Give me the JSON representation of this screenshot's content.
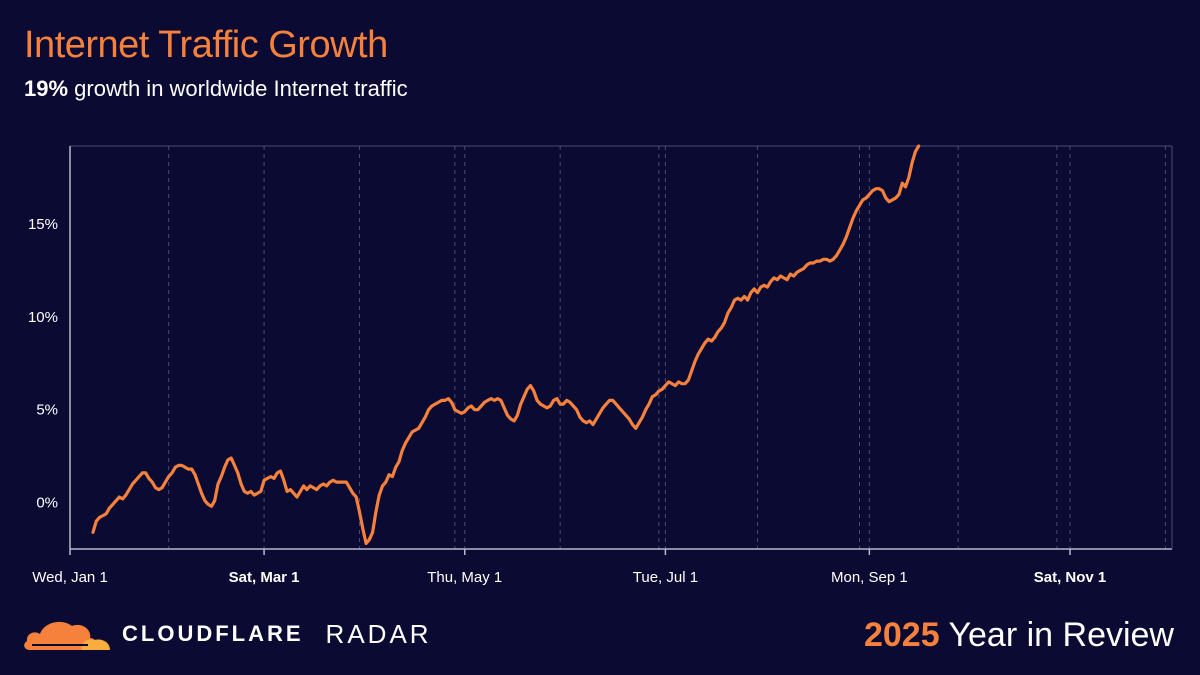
{
  "header": {
    "title": "Internet Traffic Growth",
    "subtitle_bold": "19%",
    "subtitle_rest": " growth in worldwide Internet traffic"
  },
  "footer": {
    "brand_name": "CLOUDFLARE",
    "brand_product": "RADAR",
    "year": "2025",
    "year_rest": " Year in Review"
  },
  "colors": {
    "background": "#0b0a33",
    "accent": "#f6813d",
    "axis": "#b8b8cc",
    "grid": "#4a4a75"
  },
  "icons": {
    "logo": "cloudflare-cloud-logo"
  },
  "chart_data": {
    "type": "line",
    "title": "Internet Traffic Growth",
    "xlabel": "",
    "ylabel": "",
    "ylim": [
      -2.5,
      19.2
    ],
    "xlim": [
      "2025-01-01",
      "2025-12-02"
    ],
    "grid": "vertical dashed weekly-ish lines",
    "y_ticks": [
      {
        "value": 0,
        "label": "0%"
      },
      {
        "value": 5,
        "label": "5%"
      },
      {
        "value": 10,
        "label": "10%"
      },
      {
        "value": 15,
        "label": "15%"
      }
    ],
    "x_ticks": [
      {
        "date": "2025-01-01",
        "label": "Wed, Jan 1",
        "bold": false
      },
      {
        "date": "2025-03-01",
        "label": "Sat, Mar 1",
        "bold": true
      },
      {
        "date": "2025-05-01",
        "label": "Thu, May 1",
        "bold": false
      },
      {
        "date": "2025-07-01",
        "label": "Tue, Jul 1",
        "bold": false
      },
      {
        "date": "2025-09-01",
        "label": "Mon, Sep 1",
        "bold": false
      },
      {
        "date": "2025-11-01",
        "label": "Sat, Nov 1",
        "bold": true
      }
    ],
    "grid_dates": [
      "2025-01-31",
      "2025-03-30",
      "2025-04-28",
      "2025-05-30",
      "2025-06-29",
      "2025-07-29",
      "2025-08-29",
      "2025-09-28",
      "2025-10-28",
      "2025-11-30"
    ],
    "series": [
      {
        "color": "#f6813d",
        "points": [
          [
            "2025-01-08",
            -1.6
          ],
          [
            "2025-01-09",
            -1.0
          ],
          [
            "2025-01-10",
            -0.8
          ],
          [
            "2025-01-11",
            -0.7
          ],
          [
            "2025-01-12",
            -0.6
          ],
          [
            "2025-01-13",
            -0.3
          ],
          [
            "2025-01-14",
            -0.1
          ],
          [
            "2025-01-15",
            0.1
          ],
          [
            "2025-01-16",
            0.3
          ],
          [
            "2025-01-17",
            0.2
          ],
          [
            "2025-01-18",
            0.4
          ],
          [
            "2025-01-19",
            0.7
          ],
          [
            "2025-01-20",
            1.0
          ],
          [
            "2025-01-21",
            1.2
          ],
          [
            "2025-01-22",
            1.4
          ],
          [
            "2025-01-23",
            1.6
          ],
          [
            "2025-01-24",
            1.6
          ],
          [
            "2025-01-25",
            1.3
          ],
          [
            "2025-01-26",
            1.1
          ],
          [
            "2025-01-27",
            0.8
          ],
          [
            "2025-01-28",
            0.7
          ],
          [
            "2025-01-29",
            0.8
          ],
          [
            "2025-01-30",
            1.1
          ],
          [
            "2025-01-31",
            1.4
          ],
          [
            "2025-02-01",
            1.6
          ],
          [
            "2025-02-02",
            1.9
          ],
          [
            "2025-02-03",
            2.0
          ],
          [
            "2025-02-04",
            2.0
          ],
          [
            "2025-02-05",
            1.9
          ],
          [
            "2025-02-06",
            1.8
          ],
          [
            "2025-02-07",
            1.8
          ],
          [
            "2025-02-08",
            1.5
          ],
          [
            "2025-02-09",
            1.0
          ],
          [
            "2025-02-10",
            0.5
          ],
          [
            "2025-02-11",
            0.1
          ],
          [
            "2025-02-12",
            -0.1
          ],
          [
            "2025-02-13",
            -0.2
          ],
          [
            "2025-02-14",
            0.1
          ],
          [
            "2025-02-15",
            1.0
          ],
          [
            "2025-02-16",
            1.4
          ],
          [
            "2025-02-17",
            1.9
          ],
          [
            "2025-02-18",
            2.3
          ],
          [
            "2025-02-19",
            2.4
          ],
          [
            "2025-02-20",
            2.0
          ],
          [
            "2025-02-21",
            1.6
          ],
          [
            "2025-02-22",
            1.0
          ],
          [
            "2025-02-23",
            0.6
          ],
          [
            "2025-02-24",
            0.5
          ],
          [
            "2025-02-25",
            0.6
          ],
          [
            "2025-02-26",
            0.4
          ],
          [
            "2025-02-27",
            0.5
          ],
          [
            "2025-02-28",
            0.6
          ],
          [
            "2025-03-01",
            1.2
          ],
          [
            "2025-03-02",
            1.3
          ],
          [
            "2025-03-03",
            1.4
          ],
          [
            "2025-03-04",
            1.3
          ],
          [
            "2025-03-05",
            1.6
          ],
          [
            "2025-03-06",
            1.7
          ],
          [
            "2025-03-07",
            1.2
          ],
          [
            "2025-03-08",
            0.6
          ],
          [
            "2025-03-09",
            0.7
          ],
          [
            "2025-03-10",
            0.5
          ],
          [
            "2025-03-11",
            0.3
          ],
          [
            "2025-03-12",
            0.6
          ],
          [
            "2025-03-13",
            0.9
          ],
          [
            "2025-03-14",
            0.7
          ],
          [
            "2025-03-15",
            0.9
          ],
          [
            "2025-03-16",
            0.8
          ],
          [
            "2025-03-17",
            0.7
          ],
          [
            "2025-03-18",
            0.9
          ],
          [
            "2025-03-19",
            1.0
          ],
          [
            "2025-03-20",
            0.9
          ],
          [
            "2025-03-21",
            1.1
          ],
          [
            "2025-03-22",
            1.2
          ],
          [
            "2025-03-23",
            1.1
          ],
          [
            "2025-03-24",
            1.1
          ],
          [
            "2025-03-25",
            1.1
          ],
          [
            "2025-03-26",
            1.1
          ],
          [
            "2025-03-27",
            0.8
          ],
          [
            "2025-03-28",
            0.5
          ],
          [
            "2025-03-29",
            0.3
          ],
          [
            "2025-03-30",
            -0.5
          ],
          [
            "2025-03-31",
            -1.4
          ],
          [
            "2025-04-01",
            -2.2
          ],
          [
            "2025-04-02",
            -2.0
          ],
          [
            "2025-04-03",
            -1.6
          ],
          [
            "2025-04-04",
            -0.5
          ],
          [
            "2025-04-05",
            0.4
          ],
          [
            "2025-04-06",
            0.9
          ],
          [
            "2025-04-07",
            1.1
          ],
          [
            "2025-04-08",
            1.5
          ],
          [
            "2025-04-09",
            1.4
          ],
          [
            "2025-04-10",
            1.9
          ],
          [
            "2025-04-11",
            2.2
          ],
          [
            "2025-04-12",
            2.8
          ],
          [
            "2025-04-13",
            3.2
          ],
          [
            "2025-04-14",
            3.5
          ],
          [
            "2025-04-15",
            3.8
          ],
          [
            "2025-04-16",
            3.9
          ],
          [
            "2025-04-17",
            4.0
          ],
          [
            "2025-04-18",
            4.3
          ],
          [
            "2025-04-19",
            4.6
          ],
          [
            "2025-04-20",
            5.0
          ],
          [
            "2025-04-21",
            5.2
          ],
          [
            "2025-04-22",
            5.3
          ],
          [
            "2025-04-23",
            5.4
          ],
          [
            "2025-04-24",
            5.5
          ],
          [
            "2025-04-25",
            5.5
          ],
          [
            "2025-04-26",
            5.6
          ],
          [
            "2025-04-27",
            5.4
          ],
          [
            "2025-04-28",
            5.0
          ],
          [
            "2025-04-29",
            4.9
          ],
          [
            "2025-04-30",
            4.8
          ],
          [
            "2025-05-01",
            4.9
          ],
          [
            "2025-05-02",
            5.1
          ],
          [
            "2025-05-03",
            5.2
          ],
          [
            "2025-05-04",
            5.0
          ],
          [
            "2025-05-05",
            5.0
          ],
          [
            "2025-05-06",
            5.2
          ],
          [
            "2025-05-07",
            5.4
          ],
          [
            "2025-05-08",
            5.5
          ],
          [
            "2025-05-09",
            5.6
          ],
          [
            "2025-05-10",
            5.5
          ],
          [
            "2025-05-11",
            5.6
          ],
          [
            "2025-05-12",
            5.5
          ],
          [
            "2025-05-13",
            5.1
          ],
          [
            "2025-05-14",
            4.7
          ],
          [
            "2025-05-15",
            4.5
          ],
          [
            "2025-05-16",
            4.4
          ],
          [
            "2025-05-17",
            4.7
          ],
          [
            "2025-05-18",
            5.3
          ],
          [
            "2025-05-19",
            5.7
          ],
          [
            "2025-05-20",
            6.1
          ],
          [
            "2025-05-21",
            6.3
          ],
          [
            "2025-05-22",
            6.0
          ],
          [
            "2025-05-23",
            5.5
          ],
          [
            "2025-05-24",
            5.3
          ],
          [
            "2025-05-25",
            5.2
          ],
          [
            "2025-05-26",
            5.1
          ],
          [
            "2025-05-27",
            5.2
          ],
          [
            "2025-05-28",
            5.5
          ],
          [
            "2025-05-29",
            5.6
          ],
          [
            "2025-05-30",
            5.3
          ],
          [
            "2025-05-31",
            5.3
          ],
          [
            "2025-06-01",
            5.5
          ],
          [
            "2025-06-02",
            5.4
          ],
          [
            "2025-06-03",
            5.2
          ],
          [
            "2025-06-04",
            5.0
          ],
          [
            "2025-06-05",
            4.6
          ],
          [
            "2025-06-06",
            4.4
          ],
          [
            "2025-06-07",
            4.3
          ],
          [
            "2025-06-08",
            4.4
          ],
          [
            "2025-06-09",
            4.2
          ],
          [
            "2025-06-10",
            4.5
          ],
          [
            "2025-06-11",
            4.8
          ],
          [
            "2025-06-12",
            5.1
          ],
          [
            "2025-06-13",
            5.3
          ],
          [
            "2025-06-14",
            5.5
          ],
          [
            "2025-06-15",
            5.5
          ],
          [
            "2025-06-16",
            5.3
          ],
          [
            "2025-06-17",
            5.1
          ],
          [
            "2025-06-18",
            4.9
          ],
          [
            "2025-06-19",
            4.7
          ],
          [
            "2025-06-20",
            4.5
          ],
          [
            "2025-06-21",
            4.2
          ],
          [
            "2025-06-22",
            4.0
          ],
          [
            "2025-06-23",
            4.3
          ],
          [
            "2025-06-24",
            4.6
          ],
          [
            "2025-06-25",
            5.0
          ],
          [
            "2025-06-26",
            5.3
          ],
          [
            "2025-06-27",
            5.7
          ],
          [
            "2025-06-28",
            5.8
          ],
          [
            "2025-06-29",
            6.0
          ],
          [
            "2025-06-30",
            6.1
          ],
          [
            "2025-07-01",
            6.3
          ],
          [
            "2025-07-02",
            6.5
          ],
          [
            "2025-07-03",
            6.4
          ],
          [
            "2025-07-04",
            6.3
          ],
          [
            "2025-07-05",
            6.5
          ],
          [
            "2025-07-06",
            6.4
          ],
          [
            "2025-07-07",
            6.4
          ],
          [
            "2025-07-08",
            6.6
          ],
          [
            "2025-07-09",
            7.1
          ],
          [
            "2025-07-10",
            7.6
          ],
          [
            "2025-07-11",
            8.0
          ],
          [
            "2025-07-12",
            8.3
          ],
          [
            "2025-07-13",
            8.6
          ],
          [
            "2025-07-14",
            8.8
          ],
          [
            "2025-07-15",
            8.7
          ],
          [
            "2025-07-16",
            8.9
          ],
          [
            "2025-07-17",
            9.2
          ],
          [
            "2025-07-18",
            9.4
          ],
          [
            "2025-07-19",
            9.7
          ],
          [
            "2025-07-20",
            10.2
          ],
          [
            "2025-07-21",
            10.5
          ],
          [
            "2025-07-22",
            10.9
          ],
          [
            "2025-07-23",
            11.0
          ],
          [
            "2025-07-24",
            10.9
          ],
          [
            "2025-07-25",
            11.1
          ],
          [
            "2025-07-26",
            10.9
          ],
          [
            "2025-07-27",
            11.3
          ],
          [
            "2025-07-28",
            11.5
          ],
          [
            "2025-07-29",
            11.3
          ],
          [
            "2025-07-30",
            11.6
          ],
          [
            "2025-07-31",
            11.7
          ],
          [
            "2025-08-01",
            11.6
          ],
          [
            "2025-08-02",
            11.9
          ],
          [
            "2025-08-03",
            12.1
          ],
          [
            "2025-08-04",
            12.0
          ],
          [
            "2025-08-05",
            12.2
          ],
          [
            "2025-08-06",
            12.1
          ],
          [
            "2025-08-07",
            12.0
          ],
          [
            "2025-08-08",
            12.3
          ],
          [
            "2025-08-09",
            12.2
          ],
          [
            "2025-08-10",
            12.4
          ],
          [
            "2025-08-11",
            12.5
          ],
          [
            "2025-08-12",
            12.6
          ],
          [
            "2025-08-13",
            12.8
          ],
          [
            "2025-08-14",
            12.9
          ],
          [
            "2025-08-15",
            12.9
          ],
          [
            "2025-08-16",
            13.0
          ],
          [
            "2025-08-17",
            13.0
          ],
          [
            "2025-08-18",
            13.1
          ],
          [
            "2025-08-19",
            13.1
          ],
          [
            "2025-08-20",
            13.0
          ],
          [
            "2025-08-21",
            13.1
          ],
          [
            "2025-08-22",
            13.3
          ],
          [
            "2025-08-23",
            13.6
          ],
          [
            "2025-08-24",
            13.9
          ],
          [
            "2025-08-25",
            14.3
          ],
          [
            "2025-08-26",
            14.8
          ],
          [
            "2025-08-27",
            15.3
          ],
          [
            "2025-08-28",
            15.7
          ],
          [
            "2025-08-29",
            16.0
          ],
          [
            "2025-08-30",
            16.3
          ],
          [
            "2025-08-31",
            16.4
          ],
          [
            "2025-09-01",
            16.6
          ],
          [
            "2025-09-02",
            16.8
          ],
          [
            "2025-09-03",
            16.9
          ],
          [
            "2025-09-04",
            16.9
          ],
          [
            "2025-09-05",
            16.8
          ],
          [
            "2025-09-06",
            16.4
          ],
          [
            "2025-09-07",
            16.2
          ],
          [
            "2025-09-08",
            16.3
          ],
          [
            "2025-09-09",
            16.4
          ],
          [
            "2025-09-10",
            16.6
          ],
          [
            "2025-09-11",
            17.2
          ],
          [
            "2025-09-12",
            17.0
          ],
          [
            "2025-09-13",
            17.5
          ],
          [
            "2025-09-14",
            18.3
          ],
          [
            "2025-09-15",
            18.9
          ],
          [
            "2025-09-16",
            19.2
          ]
        ]
      }
    ]
  }
}
